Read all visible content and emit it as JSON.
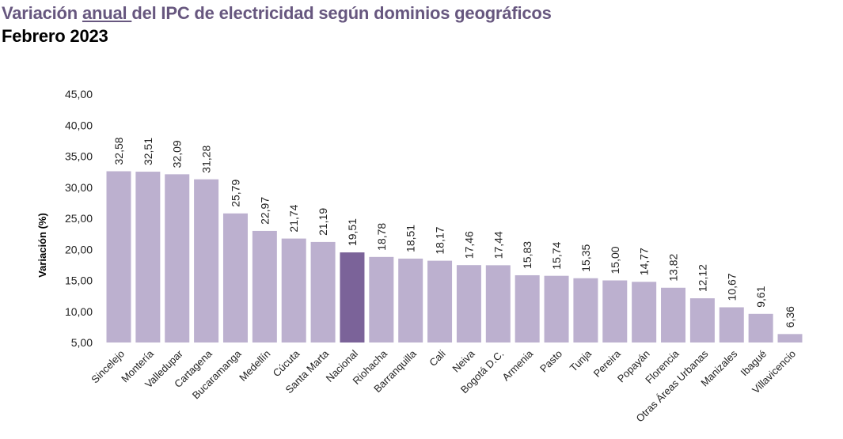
{
  "title": {
    "part1": "Variación ",
    "underlined": "anual ",
    "part2": "del IPC de electricidad según dominios geográficos"
  },
  "subtitle": "Febrero 2023",
  "chart_data": {
    "type": "bar",
    "ylabel": "Variación (%)",
    "xlabel": "",
    "ylim": [
      5,
      45
    ],
    "yticks": [
      "5,00",
      "10,00",
      "15,00",
      "20,00",
      "25,00",
      "30,00",
      "35,00",
      "40,00",
      "45,00"
    ],
    "grid": false,
    "categories": [
      "Sincelejo",
      "Montería",
      "Valledupar",
      "Cartagena",
      "Bucaramanga",
      "Medellín",
      "Cúcuta",
      "Santa Marta",
      "Nacional",
      "Riohacha",
      "Barranquilla",
      "Cali",
      "Neiva",
      "Bogotá D.C.",
      "Armenia",
      "Pasto",
      "Tunja",
      "Pereira",
      "Popayán",
      "Florencia",
      "Otras Áreas Urbanas",
      "Manizales",
      "Ibagué",
      "Villavicencio"
    ],
    "values": [
      32.58,
      32.51,
      32.09,
      31.28,
      25.79,
      22.97,
      21.74,
      21.19,
      19.51,
      18.78,
      18.51,
      18.17,
      17.46,
      17.44,
      15.83,
      15.74,
      15.35,
      15.0,
      14.77,
      13.82,
      12.12,
      10.67,
      9.61,
      6.36
    ],
    "value_labels": [
      "32,58",
      "32,51",
      "32,09",
      "31,28",
      "25,79",
      "22,97",
      "21,74",
      "21,19",
      "19,51",
      "18,78",
      "18,51",
      "18,17",
      "17,46",
      "17,44",
      "15,83",
      "15,74",
      "15,35",
      "15,00",
      "14,77",
      "13,82",
      "12,12",
      "10,67",
      "9,61",
      "6,36"
    ],
    "highlight": "Nacional",
    "colors": {
      "bar": "#bcb0cf",
      "highlight": "#7b6399",
      "title": "#67577f"
    }
  }
}
